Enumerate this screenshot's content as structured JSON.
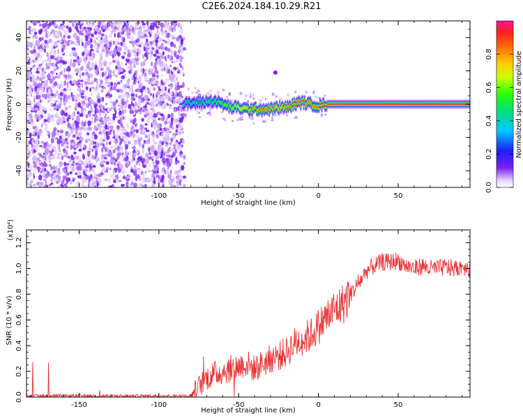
{
  "title": "C2E6.2024.184.10.29.R21",
  "colorbar": {
    "label": "Normalized spectral amplitude",
    "ticks": [
      "0.0",
      "0.2",
      "0.4",
      "0.6",
      "0.8"
    ],
    "tick_values": [
      0.0,
      0.2,
      0.4,
      0.6,
      0.8
    ]
  },
  "colors": {
    "snr_line": "#e83030",
    "scatter_primary": "#7b2cf0",
    "axis": "#000000"
  },
  "chart_data": [
    {
      "type": "heatmap",
      "ylabel": "Frequency (Hz)",
      "xlabel": "Height of straight line (km)",
      "xlim": [
        -183,
        95
      ],
      "ylim": [
        -50,
        50
      ],
      "x_ticks": [
        -150,
        -100,
        -50,
        0,
        50
      ],
      "x_tick_labels": [
        "-150",
        "-100",
        "-50",
        "0",
        "50"
      ],
      "y_ticks": [
        -40,
        -20,
        0,
        20,
        40
      ],
      "y_tick_labels": [
        "-40",
        "-20",
        "0",
        "20",
        "40"
      ],
      "noise_region": {
        "x_from": -183,
        "x_to": -84,
        "freq_from": -50,
        "freq_to": 50
      },
      "ridge": {
        "x": [
          -85,
          -75,
          -65,
          -60,
          -55,
          -50,
          -45,
          -40,
          -35,
          -30,
          -25,
          -20,
          -15,
          -10,
          -5,
          0,
          5,
          20,
          40,
          60,
          80,
          95
        ],
        "freq": [
          0,
          1,
          2,
          0,
          -2,
          -2,
          -3,
          -3,
          -3,
          -3,
          -2,
          -2,
          0,
          1,
          0,
          -1,
          0,
          0,
          0,
          0,
          0,
          0
        ],
        "amplitude": [
          0.4,
          0.45,
          0.5,
          0.55,
          0.6,
          0.65,
          0.75,
          0.8,
          0.85,
          0.8,
          0.75,
          0.8,
          0.85,
          0.85,
          0.8,
          0.85,
          0.9,
          0.92,
          0.93,
          0.93,
          0.93,
          0.93
        ]
      }
    },
    {
      "type": "line",
      "ylabel": "SNR (10 * v/v)",
      "xlabel": "Height of straight line (km)",
      "y_multiplier_label": "(x10⁴)",
      "xlim": [
        -183,
        95
      ],
      "ylim": [
        0,
        1.3
      ],
      "x_ticks": [
        -150,
        -100,
        -50,
        0,
        50
      ],
      "x_tick_labels": [
        "-150",
        "-100",
        "-50",
        "0",
        "50"
      ],
      "y_ticks": [
        0.0,
        0.2,
        0.4,
        0.6,
        0.8,
        1.0,
        1.2
      ],
      "y_tick_labels": [
        "0.0",
        "0.2",
        "0.4",
        "0.6",
        "0.8",
        "1.0",
        "1.2"
      ],
      "series": [
        {
          "x": [
            -183,
            -150,
            -100,
            -80,
            -75,
            -70,
            -65,
            -60,
            -55,
            -50,
            -45,
            -40,
            -35,
            -30,
            -25,
            -20,
            -15,
            -10,
            -5,
            0,
            5,
            10,
            15,
            20,
            25,
            30,
            35,
            40,
            45,
            50,
            55,
            60,
            65,
            70,
            75,
            80,
            85,
            90,
            95
          ],
          "y": [
            0.01,
            0.01,
            0.01,
            0.01,
            0.08,
            0.15,
            0.18,
            0.2,
            0.22,
            0.24,
            0.26,
            0.22,
            0.26,
            0.3,
            0.32,
            0.35,
            0.42,
            0.45,
            0.48,
            0.55,
            0.62,
            0.68,
            0.72,
            0.8,
            0.88,
            0.98,
            1.02,
            1.05,
            1.05,
            1.06,
            1.02,
            1.0,
            1.02,
            1.0,
            1.0,
            1.01,
            1.0,
            1.02,
            1.0
          ]
        }
      ]
    }
  ]
}
